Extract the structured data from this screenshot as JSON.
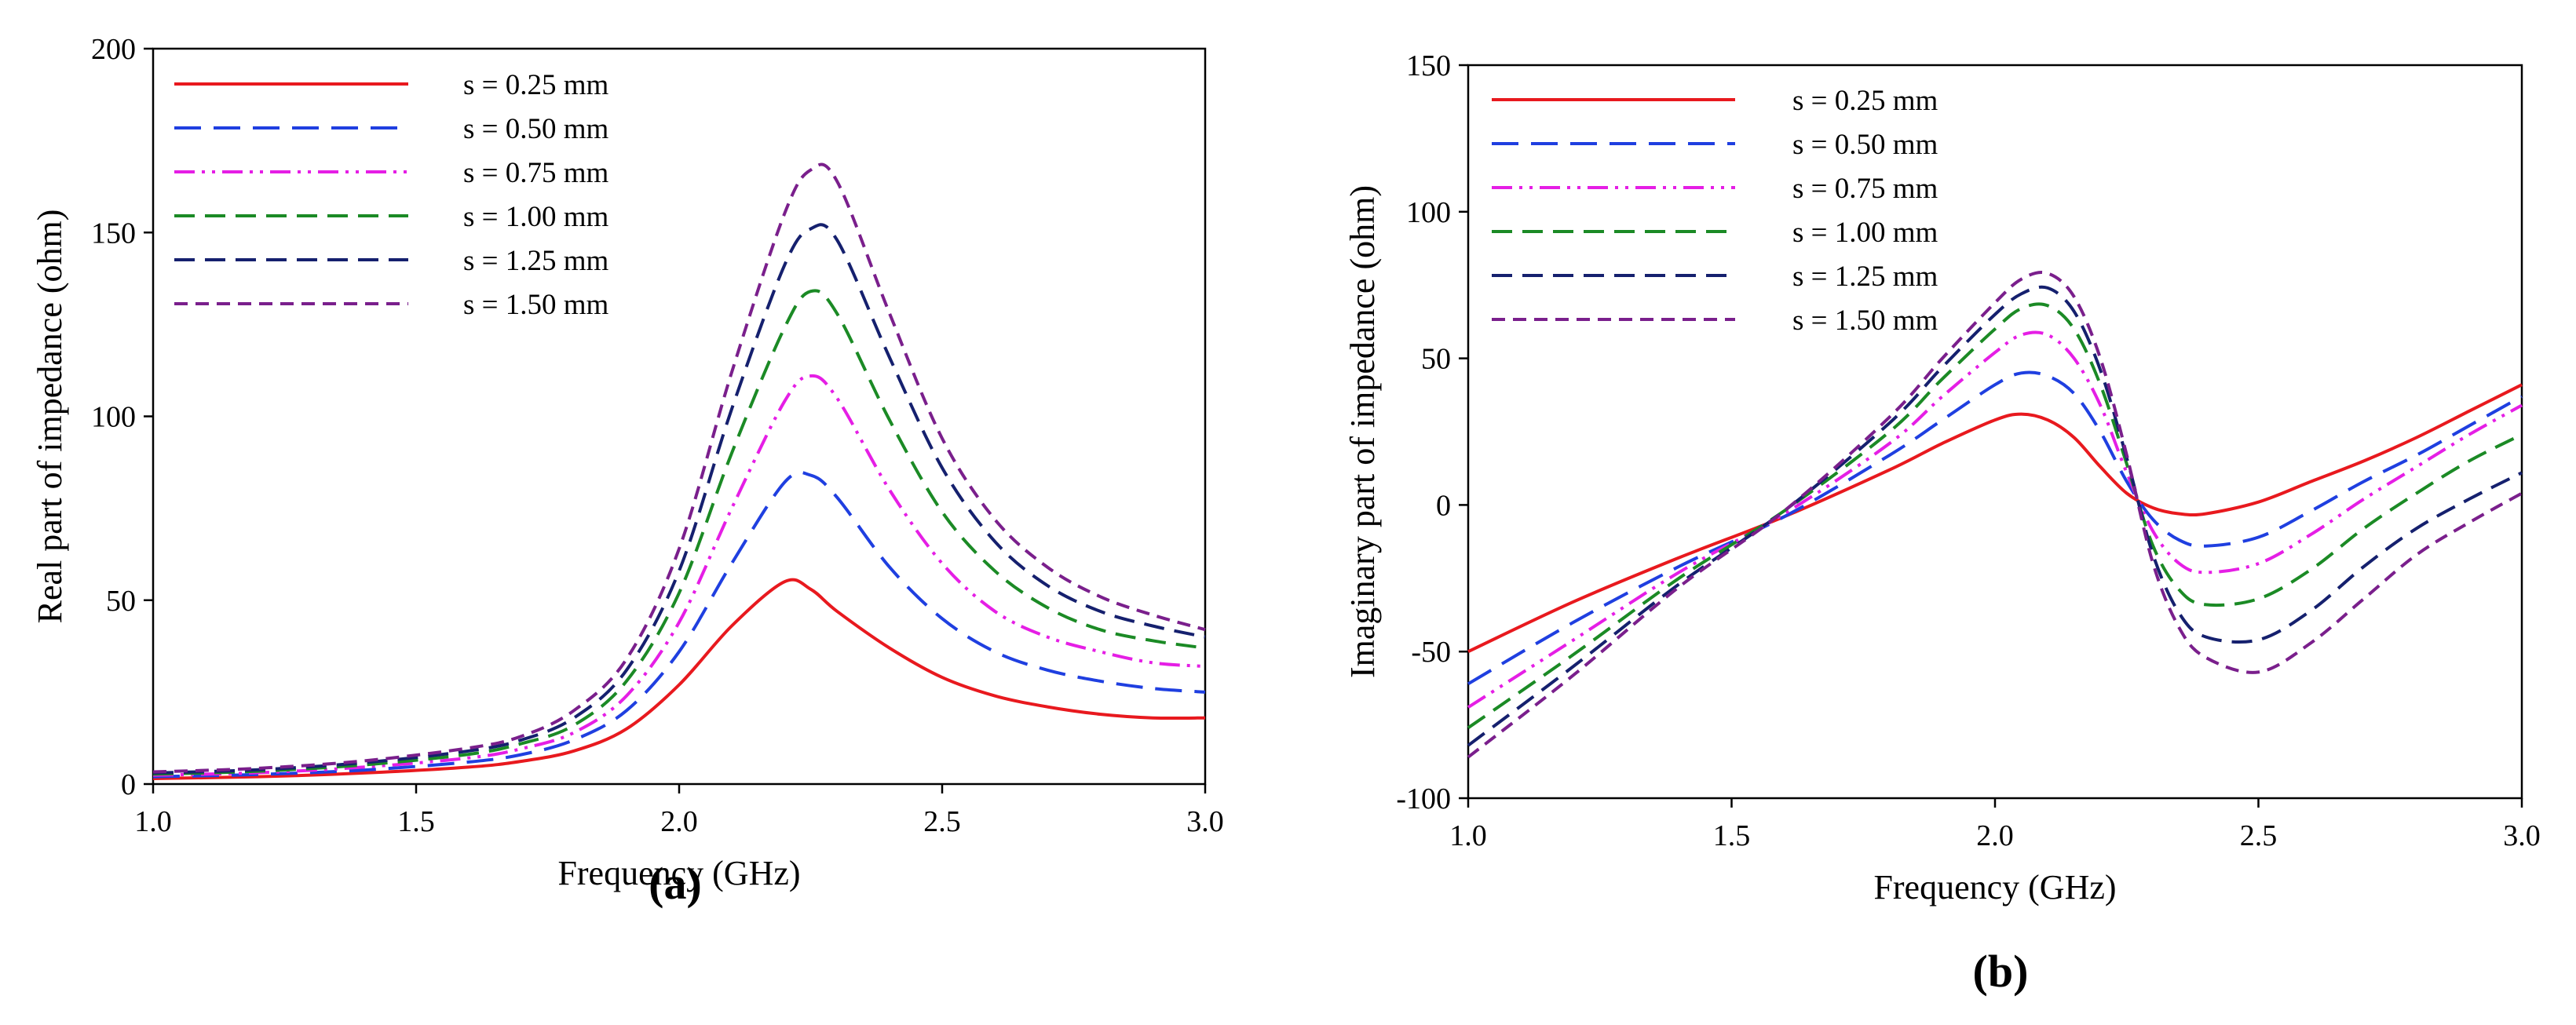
{
  "chart_data": [
    {
      "type": "line",
      "panel_label": "(a)",
      "title": "",
      "xlabel": "Frequency (GHz)",
      "ylabel": "Real part of impedance (ohm)",
      "xlim": [
        1.0,
        3.0
      ],
      "ylim": [
        0,
        200
      ],
      "xticks": [
        "1.0",
        "1.5",
        "2.0",
        "2.5",
        "3.0"
      ],
      "yticks": [
        "0",
        "50",
        "100",
        "150",
        "200"
      ],
      "legend_position": "top-left",
      "x": [
        1.0,
        1.2,
        1.4,
        1.6,
        1.7,
        1.8,
        1.9,
        2.0,
        2.1,
        2.2,
        2.25,
        2.3,
        2.4,
        2.5,
        2.6,
        2.7,
        2.8,
        2.9,
        3.0
      ],
      "series": [
        {
          "name": "s = 0.25 mm",
          "color": "#e8191e",
          "style": "solid",
          "values": [
            1.5,
            2.0,
            3.0,
            4.6,
            6.2,
            9.0,
            15,
            27,
            43,
            55,
            53,
            47,
            37,
            29,
            24,
            21,
            19,
            18,
            18
          ]
        },
        {
          "name": "s = 0.50 mm",
          "color": "#1f3fe0",
          "style": "longdash",
          "values": [
            2.0,
            2.6,
            3.8,
            6.0,
            8.0,
            12,
            20,
            36,
            60,
            82,
            84,
            78,
            59,
            45,
            36,
            31,
            28,
            26,
            25
          ]
        },
        {
          "name": "s = 0.75 mm",
          "color": "#e51ee5",
          "style": "dashdotdot",
          "values": [
            2.4,
            3.1,
            4.6,
            7.1,
            9.6,
            14,
            24,
            44,
            75,
            104,
            111,
            105,
            80,
            60,
            47,
            40,
            36,
            33,
            32
          ]
        },
        {
          "name": "s = 1.00 mm",
          "color": "#1b8a25",
          "style": "dash",
          "values": [
            2.7,
            3.5,
            5.2,
            8.1,
            11,
            16,
            28,
            52,
            90,
            124,
            134,
            128,
            99,
            74,
            58,
            48,
            42,
            39,
            37
          ]
        },
        {
          "name": "s = 1.25 mm",
          "color": "#15206e",
          "style": "dash",
          "values": [
            3.0,
            3.9,
            5.8,
            9.0,
            12,
            18,
            31,
            58,
            102,
            141,
            151,
            148,
            116,
            86,
            66,
            54,
            47,
            43,
            40
          ]
        },
        {
          "name": "s = 1.50 mm",
          "color": "#7a1f8c",
          "style": "shortdash",
          "values": [
            3.3,
            4.3,
            6.3,
            9.8,
            13,
            20,
            34,
            64,
            112,
            155,
            167,
            164,
            128,
            94,
            72,
            59,
            51,
            46,
            42
          ]
        }
      ]
    },
    {
      "type": "line",
      "panel_label": "(b)",
      "title": "",
      "xlabel": "Frequency (GHz)",
      "ylabel": "Imaginary part of impedance (ohm)",
      "xlim": [
        1.0,
        3.0
      ],
      "ylim": [
        -100,
        150
      ],
      "xticks": [
        "1.0",
        "1.5",
        "2.0",
        "2.5",
        "3.0"
      ],
      "yticks": [
        "-100",
        "-50",
        "0",
        "50",
        "100",
        "150"
      ],
      "legend_position": "top-left",
      "x": [
        1.0,
        1.2,
        1.4,
        1.6,
        1.8,
        1.9,
        2.0,
        2.05,
        2.1,
        2.15,
        2.2,
        2.25,
        2.3,
        2.35,
        2.4,
        2.5,
        2.6,
        2.7,
        2.8,
        2.9,
        3.0
      ],
      "series": [
        {
          "name": "s = 0.25 mm",
          "color": "#e8191e",
          "style": "solid",
          "values": [
            -50,
            -33,
            -18,
            -4,
            12,
            21,
            29,
            31,
            29,
            23,
            13,
            4,
            -1,
            -3,
            -3,
            1,
            8,
            15,
            23,
            32,
            41
          ]
        },
        {
          "name": "s = 0.50 mm",
          "color": "#1f3fe0",
          "style": "longdash",
          "values": [
            -61,
            -40,
            -21,
            -4,
            17,
            29,
            41,
            45,
            44,
            38,
            25,
            8,
            -5,
            -12,
            -14,
            -11,
            -2,
            8,
            17,
            27,
            37
          ]
        },
        {
          "name": "s = 0.75 mm",
          "color": "#e51ee5",
          "style": "dashdotdot",
          "values": [
            -69,
            -46,
            -23,
            -3,
            21,
            37,
            52,
            58,
            58,
            50,
            34,
            11,
            -9,
            -20,
            -23,
            -20,
            -10,
            2,
            13,
            24,
            34
          ]
        },
        {
          "name": "s = 1.00 mm",
          "color": "#1b8a25",
          "style": "dash",
          "values": [
            -76,
            -51,
            -25,
            -2,
            25,
            43,
            60,
            67,
            68,
            60,
            41,
            14,
            -14,
            -29,
            -34,
            -32,
            -22,
            -8,
            4,
            15,
            24
          ]
        },
        {
          "name": "s = 1.25 mm",
          "color": "#15206e",
          "style": "dash",
          "values": [
            -82,
            -55,
            -27,
            -2,
            28,
            47,
            65,
            72,
            74,
            66,
            46,
            16,
            -17,
            -37,
            -45,
            -46,
            -36,
            -21,
            -8,
            2,
            11
          ]
        },
        {
          "name": "s = 1.50 mm",
          "color": "#7a1f8c",
          "style": "shortdash",
          "values": [
            -86,
            -58,
            -28,
            -2,
            30,
            50,
            69,
            77,
            79,
            71,
            50,
            17,
            -20,
            -42,
            -52,
            -57,
            -47,
            -32,
            -17,
            -6,
            4
          ]
        }
      ]
    }
  ]
}
